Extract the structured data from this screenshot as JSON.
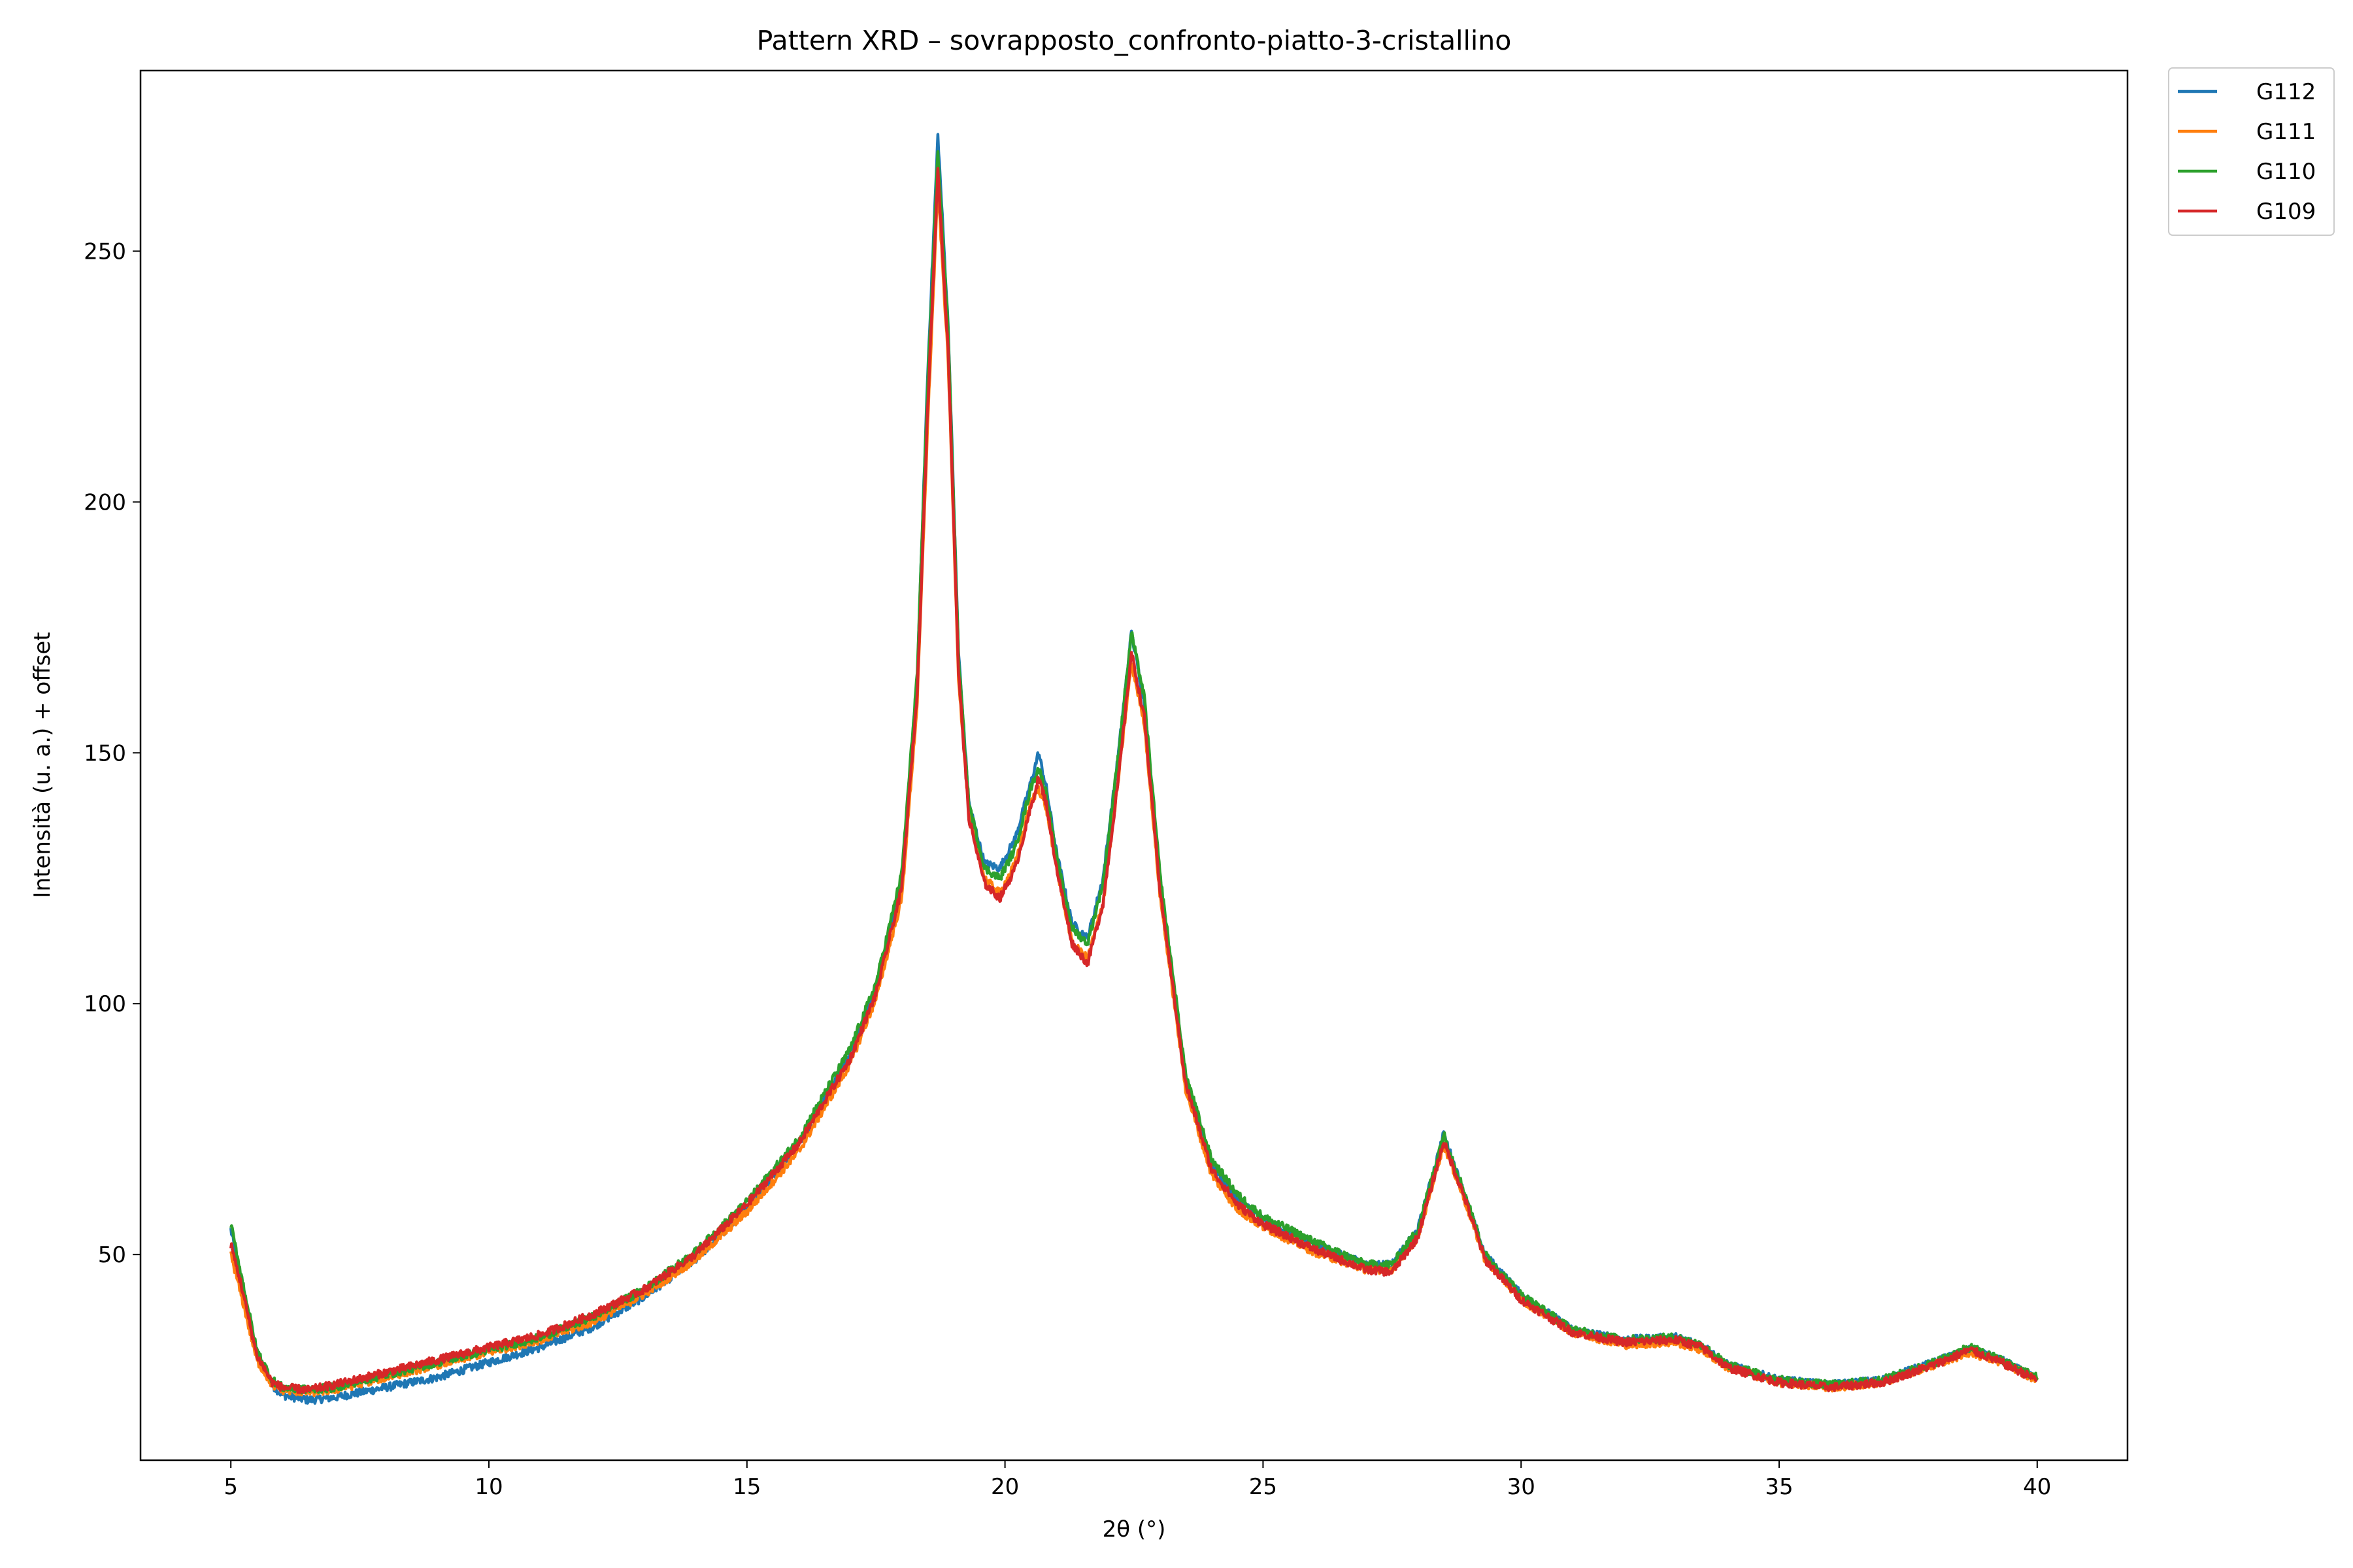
{
  "chart_data": {
    "type": "line",
    "title": "Pattern XRD – sovrapposto_confronto-piatto-3-cristallino",
    "xlabel": "2θ (°)",
    "ylabel": "Intensità (u. a.) + offset",
    "xlim": [
      3.25,
      41.75
    ],
    "ylim": [
      9,
      286
    ],
    "xticks": [
      5,
      10,
      15,
      20,
      25,
      30,
      35,
      40
    ],
    "yticks": [
      50,
      100,
      150,
      200,
      250
    ],
    "grid": false,
    "legend_position": "outside top-right",
    "series": [
      {
        "name": "G112",
        "color": "#1f77b4",
        "points": [
          [
            5.0,
            55
          ],
          [
            5.2,
            45
          ],
          [
            5.5,
            30
          ],
          [
            5.8,
            24
          ],
          [
            6.0,
            22
          ],
          [
            6.5,
            21
          ],
          [
            7.0,
            21.5
          ],
          [
            8.0,
            23.5
          ],
          [
            9.0,
            25.5
          ],
          [
            10.0,
            28.5
          ],
          [
            11.0,
            31.5
          ],
          [
            12.0,
            35.5
          ],
          [
            13.0,
            41.5
          ],
          [
            14.0,
            49
          ],
          [
            15.0,
            59
          ],
          [
            16.0,
            72
          ],
          [
            17.0,
            90
          ],
          [
            17.5,
            103
          ],
          [
            18.0,
            125
          ],
          [
            18.3,
            165
          ],
          [
            18.5,
            225
          ],
          [
            18.7,
            273
          ],
          [
            18.9,
            235
          ],
          [
            19.1,
            170
          ],
          [
            19.3,
            140
          ],
          [
            19.6,
            128
          ],
          [
            19.9,
            127
          ],
          [
            20.2,
            133
          ],
          [
            20.5,
            144
          ],
          [
            20.65,
            150
          ],
          [
            20.8,
            143
          ],
          [
            21.0,
            130
          ],
          [
            21.3,
            116
          ],
          [
            21.6,
            113
          ],
          [
            21.9,
            125
          ],
          [
            22.2,
            150
          ],
          [
            22.45,
            174
          ],
          [
            22.7,
            160
          ],
          [
            23.0,
            125
          ],
          [
            23.5,
            85
          ],
          [
            24.0,
            68
          ],
          [
            24.5,
            61
          ],
          [
            25.0,
            57
          ],
          [
            26.0,
            52
          ],
          [
            27.0,
            48
          ],
          [
            27.5,
            48
          ],
          [
            28.0,
            55
          ],
          [
            28.5,
            74
          ],
          [
            28.9,
            62
          ],
          [
            29.3,
            50
          ],
          [
            30.0,
            42
          ],
          [
            31.0,
            35
          ],
          [
            32.0,
            33
          ],
          [
            33.0,
            33.5
          ],
          [
            33.5,
            32
          ],
          [
            34.0,
            28
          ],
          [
            35.0,
            25
          ],
          [
            36.0,
            24
          ],
          [
            37.0,
            25
          ],
          [
            38.0,
            28.5
          ],
          [
            38.7,
            31
          ],
          [
            39.3,
            29
          ],
          [
            40.0,
            25
          ]
        ]
      },
      {
        "name": "G111",
        "color": "#ff7f0e",
        "points": [
          [
            5.0,
            50
          ],
          [
            5.2,
            42
          ],
          [
            5.5,
            29
          ],
          [
            5.8,
            24
          ],
          [
            6.0,
            23
          ],
          [
            6.5,
            22.5
          ],
          [
            7.0,
            23
          ],
          [
            8.0,
            25.5
          ],
          [
            9.0,
            28
          ],
          [
            10.0,
            30.5
          ],
          [
            11.0,
            33
          ],
          [
            12.0,
            36.5
          ],
          [
            13.0,
            42
          ],
          [
            14.0,
            49
          ],
          [
            15.0,
            58.5
          ],
          [
            16.0,
            70.5
          ],
          [
            17.0,
            88
          ],
          [
            17.5,
            101
          ],
          [
            18.0,
            121
          ],
          [
            18.3,
            160
          ],
          [
            18.5,
            215
          ],
          [
            18.7,
            263
          ],
          [
            18.9,
            228
          ],
          [
            19.1,
            165
          ],
          [
            19.3,
            138
          ],
          [
            19.6,
            125
          ],
          [
            19.9,
            122
          ],
          [
            20.2,
            128
          ],
          [
            20.5,
            140
          ],
          [
            20.65,
            143
          ],
          [
            20.8,
            139
          ],
          [
            21.0,
            127
          ],
          [
            21.3,
            112
          ],
          [
            21.6,
            109
          ],
          [
            21.9,
            120
          ],
          [
            22.2,
            145
          ],
          [
            22.45,
            168
          ],
          [
            22.7,
            156
          ],
          [
            23.0,
            122
          ],
          [
            23.5,
            83
          ],
          [
            24.0,
            66
          ],
          [
            24.5,
            59
          ],
          [
            25.0,
            55.5
          ],
          [
            26.0,
            50.5
          ],
          [
            27.0,
            47
          ],
          [
            27.5,
            47
          ],
          [
            28.0,
            53.5
          ],
          [
            28.5,
            72
          ],
          [
            28.9,
            61
          ],
          [
            29.3,
            49
          ],
          [
            30.0,
            41
          ],
          [
            31.0,
            34.5
          ],
          [
            32.0,
            32
          ],
          [
            33.0,
            32.5
          ],
          [
            33.5,
            31
          ],
          [
            34.0,
            27.5
          ],
          [
            35.0,
            24.5
          ],
          [
            36.0,
            23.5
          ],
          [
            37.0,
            24.5
          ],
          [
            38.0,
            28
          ],
          [
            38.7,
            30.5
          ],
          [
            39.3,
            28.5
          ],
          [
            40.0,
            25
          ]
        ]
      },
      {
        "name": "G110",
        "color": "#2ca02c",
        "points": [
          [
            5.0,
            56
          ],
          [
            5.2,
            46
          ],
          [
            5.5,
            31
          ],
          [
            5.8,
            25
          ],
          [
            6.0,
            23.5
          ],
          [
            6.5,
            23
          ],
          [
            7.0,
            23.5
          ],
          [
            8.0,
            26
          ],
          [
            9.0,
            28.5
          ],
          [
            10.0,
            31
          ],
          [
            11.0,
            33.5
          ],
          [
            12.0,
            37.5
          ],
          [
            13.0,
            43
          ],
          [
            14.0,
            50.5
          ],
          [
            15.0,
            60.5
          ],
          [
            16.0,
            73
          ],
          [
            17.0,
            91
          ],
          [
            17.5,
            104
          ],
          [
            18.0,
            126
          ],
          [
            18.3,
            166
          ],
          [
            18.5,
            223
          ],
          [
            18.7,
            270
          ],
          [
            18.9,
            234
          ],
          [
            19.1,
            169
          ],
          [
            19.3,
            140
          ],
          [
            19.6,
            127
          ],
          [
            19.9,
            125
          ],
          [
            20.2,
            131
          ],
          [
            20.5,
            143
          ],
          [
            20.65,
            147
          ],
          [
            20.8,
            142
          ],
          [
            21.0,
            129
          ],
          [
            21.3,
            115
          ],
          [
            21.6,
            112
          ],
          [
            21.9,
            124
          ],
          [
            22.2,
            150
          ],
          [
            22.45,
            174
          ],
          [
            22.7,
            161
          ],
          [
            23.0,
            126
          ],
          [
            23.5,
            86
          ],
          [
            24.0,
            69
          ],
          [
            24.5,
            62
          ],
          [
            25.0,
            57.5
          ],
          [
            26.0,
            52.5
          ],
          [
            27.0,
            48
          ],
          [
            27.5,
            48
          ],
          [
            28.0,
            55
          ],
          [
            28.5,
            74
          ],
          [
            28.9,
            62.5
          ],
          [
            29.3,
            50
          ],
          [
            30.0,
            42
          ],
          [
            31.0,
            35
          ],
          [
            32.0,
            33
          ],
          [
            33.0,
            33.5
          ],
          [
            33.5,
            32
          ],
          [
            34.0,
            28
          ],
          [
            35.0,
            25
          ],
          [
            36.0,
            24
          ],
          [
            37.0,
            25
          ],
          [
            38.0,
            28.5
          ],
          [
            38.7,
            31.5
          ],
          [
            39.3,
            29
          ],
          [
            40.0,
            25.5
          ]
        ]
      },
      {
        "name": "G109",
        "color": "#d62728",
        "points": [
          [
            5.0,
            52
          ],
          [
            5.2,
            44
          ],
          [
            5.5,
            30
          ],
          [
            5.8,
            24.5
          ],
          [
            6.0,
            23.5
          ],
          [
            6.5,
            23
          ],
          [
            7.0,
            24
          ],
          [
            8.0,
            26.5
          ],
          [
            9.0,
            29
          ],
          [
            10.0,
            31.5
          ],
          [
            11.0,
            34
          ],
          [
            12.0,
            38
          ],
          [
            13.0,
            43
          ],
          [
            14.0,
            50
          ],
          [
            15.0,
            60
          ],
          [
            16.0,
            72
          ],
          [
            17.0,
            89
          ],
          [
            17.5,
            102
          ],
          [
            18.0,
            123
          ],
          [
            18.3,
            162
          ],
          [
            18.5,
            218
          ],
          [
            18.7,
            266
          ],
          [
            18.9,
            230
          ],
          [
            19.1,
            166
          ],
          [
            19.3,
            137
          ],
          [
            19.6,
            124
          ],
          [
            19.9,
            121
          ],
          [
            20.2,
            127
          ],
          [
            20.5,
            139
          ],
          [
            20.65,
            145
          ],
          [
            20.8,
            140
          ],
          [
            21.0,
            127
          ],
          [
            21.3,
            112
          ],
          [
            21.6,
            108
          ],
          [
            21.9,
            120
          ],
          [
            22.2,
            145
          ],
          [
            22.45,
            170
          ],
          [
            22.7,
            157
          ],
          [
            23.0,
            123
          ],
          [
            23.5,
            84
          ],
          [
            24.0,
            67
          ],
          [
            24.5,
            60
          ],
          [
            25.0,
            56
          ],
          [
            26.0,
            51
          ],
          [
            27.0,
            47
          ],
          [
            27.5,
            46.5
          ],
          [
            28.0,
            53.5
          ],
          [
            28.5,
            72.5
          ],
          [
            28.9,
            61.5
          ],
          [
            29.3,
            49
          ],
          [
            30.0,
            41
          ],
          [
            31.0,
            34.5
          ],
          [
            32.0,
            32.5
          ],
          [
            33.0,
            33
          ],
          [
            33.5,
            31.5
          ],
          [
            34.0,
            27.5
          ],
          [
            35.0,
            24.5
          ],
          [
            36.0,
            23.5
          ],
          [
            37.0,
            24.5
          ],
          [
            38.0,
            28
          ],
          [
            38.7,
            31
          ],
          [
            39.3,
            28.5
          ],
          [
            40.0,
            25
          ]
        ]
      }
    ]
  }
}
